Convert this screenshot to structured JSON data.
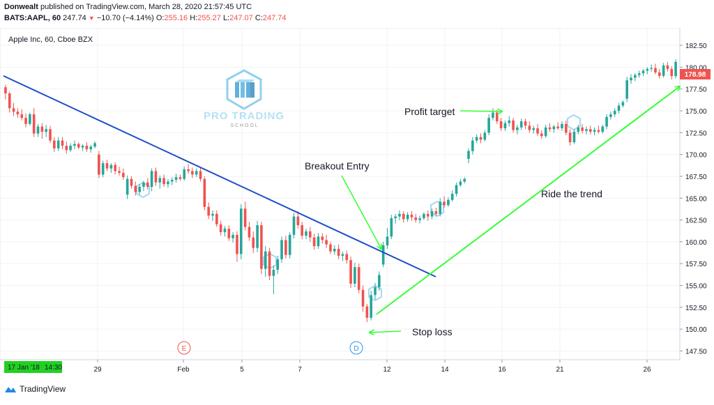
{
  "header": {
    "author": "Donwealt",
    "published": "published on TradingView.com, March 28, 2020 21:57:45 UTC",
    "symbol": "BATS:AAPL, 60",
    "last": "247.74",
    "change": "−10.70 (−4.14%)",
    "o_label": "O:",
    "o": "255.16",
    "h_label": "H:",
    "h": "255.27",
    "l_label": "L:",
    "l": "247.07",
    "c_label": "C:",
    "c": "247.74"
  },
  "chart_title": "Apple Inc, 60, Cboe BZX",
  "price_badge": "178.98",
  "time_badge": "17 Jan '18",
  "time_badge_2": "14:30",
  "footer": {
    "brand": "TradingView"
  },
  "watermark": {
    "line1": "PRO TRADING",
    "line2": "S C H O O L"
  },
  "colors": {
    "up": "#26a69a",
    "down": "#ef5350",
    "trendline": "#1e4fc7",
    "annotation": "#33ff33",
    "badge": "#ef5350",
    "time_badge_bg": "#22d022"
  },
  "chart_data": {
    "type": "candlestick",
    "y_ticks": [
      147.5,
      150.0,
      152.5,
      155.0,
      157.5,
      160.0,
      162.5,
      165.0,
      167.5,
      170.0,
      172.5,
      175.0,
      177.5,
      180.0,
      182.5
    ],
    "ylim": [
      146.5,
      184.5
    ],
    "x_ticks": [
      "29",
      "Feb",
      "5",
      "7",
      "12",
      "14",
      "16",
      "21",
      "26"
    ],
    "markers": [
      {
        "label": "E"
      },
      {
        "label": "D"
      }
    ],
    "annotations": [
      "Profit target",
      "Breakout Entry",
      "Ride the trend",
      "Stop loss"
    ],
    "trendline": {
      "from": 179.0,
      "to": 156.0
    },
    "ride_line": {
      "from": 151.7,
      "to": 177.8
    },
    "candles": [
      {
        "o": 177.7,
        "h": 178.0,
        "l": 176.3,
        "c": 177.0
      },
      {
        "o": 177.0,
        "h": 177.2,
        "l": 174.8,
        "c": 175.3
      },
      {
        "o": 175.3,
        "h": 175.9,
        "l": 174.4,
        "c": 174.9
      },
      {
        "o": 174.9,
        "h": 175.3,
        "l": 174.2,
        "c": 174.6
      },
      {
        "o": 174.6,
        "h": 175.2,
        "l": 173.9,
        "c": 174.2
      },
      {
        "o": 174.2,
        "h": 174.7,
        "l": 173.1,
        "c": 173.5
      },
      {
        "o": 173.5,
        "h": 174.8,
        "l": 173.3,
        "c": 174.6
      },
      {
        "o": 174.6,
        "h": 175.3,
        "l": 172.0,
        "c": 172.4
      },
      {
        "o": 172.4,
        "h": 173.5,
        "l": 172.0,
        "c": 173.2
      },
      {
        "o": 173.2,
        "h": 173.6,
        "l": 171.8,
        "c": 172.6
      },
      {
        "o": 172.6,
        "h": 173.4,
        "l": 172.0,
        "c": 172.9
      },
      {
        "o": 172.9,
        "h": 173.3,
        "l": 171.3,
        "c": 171.6
      },
      {
        "o": 171.6,
        "h": 172.0,
        "l": 170.3,
        "c": 170.7
      },
      {
        "o": 170.7,
        "h": 172.0,
        "l": 170.4,
        "c": 171.6
      },
      {
        "o": 171.6,
        "h": 172.0,
        "l": 170.6,
        "c": 171.0
      },
      {
        "o": 171.0,
        "h": 171.5,
        "l": 170.1,
        "c": 170.5
      },
      {
        "o": 170.5,
        "h": 171.3,
        "l": 170.3,
        "c": 171.0
      },
      {
        "o": 171.0,
        "h": 171.6,
        "l": 170.6,
        "c": 171.2
      },
      {
        "o": 171.2,
        "h": 171.4,
        "l": 170.6,
        "c": 170.8
      },
      {
        "o": 170.8,
        "h": 171.2,
        "l": 170.4,
        "c": 171.0
      },
      {
        "o": 171.0,
        "h": 171.4,
        "l": 170.3,
        "c": 170.6
      },
      {
        "o": 170.6,
        "h": 171.1,
        "l": 170.2,
        "c": 170.9
      },
      {
        "o": 170.9,
        "h": 171.5,
        "l": 170.7,
        "c": 171.3
      },
      {
        "o": 170.0,
        "h": 170.4,
        "l": 167.3,
        "c": 167.7
      },
      {
        "o": 167.7,
        "h": 169.3,
        "l": 167.4,
        "c": 169.0
      },
      {
        "o": 169.0,
        "h": 169.4,
        "l": 168.1,
        "c": 168.4
      },
      {
        "o": 168.4,
        "h": 169.0,
        "l": 167.9,
        "c": 168.8
      },
      {
        "o": 168.8,
        "h": 169.1,
        "l": 167.7,
        "c": 168.1
      },
      {
        "o": 168.1,
        "h": 168.6,
        "l": 167.6,
        "c": 167.9
      },
      {
        "o": 167.9,
        "h": 168.4,
        "l": 167.1,
        "c": 167.4
      },
      {
        "o": 165.4,
        "h": 167.6,
        "l": 164.9,
        "c": 167.2
      },
      {
        "o": 167.2,
        "h": 167.5,
        "l": 166.1,
        "c": 166.4
      },
      {
        "o": 166.4,
        "h": 166.9,
        "l": 165.3,
        "c": 165.7
      },
      {
        "o": 165.7,
        "h": 166.6,
        "l": 165.4,
        "c": 166.3
      },
      {
        "o": 166.3,
        "h": 167.0,
        "l": 165.8,
        "c": 166.8
      },
      {
        "o": 166.8,
        "h": 167.3,
        "l": 166.0,
        "c": 166.3
      },
      {
        "o": 166.3,
        "h": 168.4,
        "l": 165.8,
        "c": 168.1
      },
      {
        "o": 168.1,
        "h": 168.5,
        "l": 166.4,
        "c": 166.8
      },
      {
        "o": 166.8,
        "h": 167.6,
        "l": 166.1,
        "c": 167.3
      },
      {
        "o": 167.3,
        "h": 167.7,
        "l": 166.3,
        "c": 166.6
      },
      {
        "o": 166.6,
        "h": 167.2,
        "l": 166.2,
        "c": 166.9
      },
      {
        "o": 166.9,
        "h": 167.4,
        "l": 166.5,
        "c": 167.1
      },
      {
        "o": 167.1,
        "h": 167.8,
        "l": 166.8,
        "c": 167.4
      },
      {
        "o": 167.4,
        "h": 167.7,
        "l": 167.0,
        "c": 167.2
      },
      {
        "o": 167.2,
        "h": 168.6,
        "l": 167.0,
        "c": 168.3
      },
      {
        "o": 168.3,
        "h": 168.9,
        "l": 167.8,
        "c": 168.1
      },
      {
        "o": 168.1,
        "h": 168.5,
        "l": 167.3,
        "c": 167.7
      },
      {
        "o": 167.7,
        "h": 168.4,
        "l": 167.4,
        "c": 168.1
      },
      {
        "o": 168.1,
        "h": 168.5,
        "l": 166.9,
        "c": 167.2
      },
      {
        "o": 167.2,
        "h": 167.5,
        "l": 163.6,
        "c": 164.0
      },
      {
        "o": 164.0,
        "h": 164.5,
        "l": 162.6,
        "c": 163.0
      },
      {
        "o": 163.0,
        "h": 163.6,
        "l": 162.4,
        "c": 163.2
      },
      {
        "o": 163.2,
        "h": 163.6,
        "l": 161.7,
        "c": 162.0
      },
      {
        "o": 162.0,
        "h": 162.4,
        "l": 160.7,
        "c": 161.1
      },
      {
        "o": 161.1,
        "h": 161.8,
        "l": 160.6,
        "c": 161.5
      },
      {
        "o": 161.5,
        "h": 161.9,
        "l": 160.1,
        "c": 160.4
      },
      {
        "o": 160.4,
        "h": 161.1,
        "l": 159.9,
        "c": 160.8
      },
      {
        "o": 160.8,
        "h": 161.2,
        "l": 157.7,
        "c": 158.6
      },
      {
        "o": 158.6,
        "h": 164.3,
        "l": 158.0,
        "c": 163.8
      },
      {
        "o": 163.8,
        "h": 164.6,
        "l": 161.3,
        "c": 161.7
      },
      {
        "o": 161.7,
        "h": 162.3,
        "l": 160.1,
        "c": 160.5
      },
      {
        "o": 160.5,
        "h": 161.2,
        "l": 158.7,
        "c": 159.3
      },
      {
        "o": 159.3,
        "h": 162.4,
        "l": 158.8,
        "c": 161.9
      },
      {
        "o": 161.9,
        "h": 162.3,
        "l": 156.3,
        "c": 156.9
      },
      {
        "o": 156.9,
        "h": 159.5,
        "l": 156.0,
        "c": 158.9
      },
      {
        "o": 158.9,
        "h": 159.3,
        "l": 155.6,
        "c": 156.1
      },
      {
        "o": 156.1,
        "h": 157.3,
        "l": 154.0,
        "c": 156.8
      },
      {
        "o": 156.8,
        "h": 158.4,
        "l": 156.3,
        "c": 158.0
      },
      {
        "o": 158.0,
        "h": 160.6,
        "l": 157.6,
        "c": 160.2
      },
      {
        "o": 160.2,
        "h": 160.7,
        "l": 158.1,
        "c": 158.5
      },
      {
        "o": 158.5,
        "h": 161.1,
        "l": 158.1,
        "c": 160.8
      },
      {
        "o": 160.8,
        "h": 163.3,
        "l": 160.4,
        "c": 162.9
      },
      {
        "o": 162.9,
        "h": 163.5,
        "l": 161.5,
        "c": 161.9
      },
      {
        "o": 161.9,
        "h": 162.3,
        "l": 160.3,
        "c": 160.7
      },
      {
        "o": 160.7,
        "h": 161.5,
        "l": 160.3,
        "c": 161.2
      },
      {
        "o": 161.2,
        "h": 161.7,
        "l": 160.0,
        "c": 160.5
      },
      {
        "o": 160.5,
        "h": 160.9,
        "l": 159.1,
        "c": 159.5
      },
      {
        "o": 159.5,
        "h": 161.0,
        "l": 159.2,
        "c": 160.6
      },
      {
        "o": 160.6,
        "h": 161.0,
        "l": 159.8,
        "c": 160.2
      },
      {
        "o": 160.2,
        "h": 160.8,
        "l": 159.3,
        "c": 159.7
      },
      {
        "o": 159.7,
        "h": 160.0,
        "l": 158.6,
        "c": 158.9
      },
      {
        "o": 158.9,
        "h": 159.6,
        "l": 158.5,
        "c": 159.2
      },
      {
        "o": 159.2,
        "h": 159.7,
        "l": 158.0,
        "c": 158.4
      },
      {
        "o": 158.4,
        "h": 158.9,
        "l": 157.8,
        "c": 158.6
      },
      {
        "o": 158.6,
        "h": 159.0,
        "l": 157.5,
        "c": 157.9
      },
      {
        "o": 157.9,
        "h": 158.3,
        "l": 154.7,
        "c": 155.2
      },
      {
        "o": 155.2,
        "h": 157.6,
        "l": 154.8,
        "c": 157.1
      },
      {
        "o": 157.1,
        "h": 157.5,
        "l": 154.1,
        "c": 154.5
      },
      {
        "o": 154.5,
        "h": 155.0,
        "l": 152.0,
        "c": 152.6
      },
      {
        "o": 152.6,
        "h": 152.9,
        "l": 150.8,
        "c": 151.3
      },
      {
        "o": 151.3,
        "h": 154.4,
        "l": 151.0,
        "c": 153.9
      },
      {
        "o": 153.9,
        "h": 155.3,
        "l": 153.4,
        "c": 154.8
      },
      {
        "o": 154.8,
        "h": 156.6,
        "l": 154.4,
        "c": 156.2
      },
      {
        "o": 157.4,
        "h": 160.0,
        "l": 157.1,
        "c": 159.6
      },
      {
        "o": 159.6,
        "h": 161.6,
        "l": 159.2,
        "c": 160.6
      },
      {
        "o": 160.6,
        "h": 163.1,
        "l": 160.3,
        "c": 162.7
      },
      {
        "o": 162.7,
        "h": 163.2,
        "l": 162.1,
        "c": 162.9
      },
      {
        "o": 162.9,
        "h": 163.6,
        "l": 162.5,
        "c": 163.2
      },
      {
        "o": 163.2,
        "h": 163.5,
        "l": 162.2,
        "c": 162.6
      },
      {
        "o": 162.6,
        "h": 163.4,
        "l": 162.3,
        "c": 163.1
      },
      {
        "o": 163.1,
        "h": 163.5,
        "l": 162.4,
        "c": 162.8
      },
      {
        "o": 162.8,
        "h": 163.2,
        "l": 162.2,
        "c": 162.5
      },
      {
        "o": 162.5,
        "h": 163.0,
        "l": 162.1,
        "c": 162.7
      },
      {
        "o": 162.7,
        "h": 163.4,
        "l": 162.5,
        "c": 163.2
      },
      {
        "o": 163.2,
        "h": 163.6,
        "l": 162.4,
        "c": 162.9
      },
      {
        "o": 162.9,
        "h": 163.8,
        "l": 162.6,
        "c": 163.5
      },
      {
        "o": 163.5,
        "h": 163.9,
        "l": 162.9,
        "c": 163.2
      },
      {
        "o": 163.2,
        "h": 165.0,
        "l": 162.9,
        "c": 164.6
      },
      {
        "o": 164.6,
        "h": 165.2,
        "l": 163.9,
        "c": 164.2
      },
      {
        "o": 164.2,
        "h": 165.1,
        "l": 164.0,
        "c": 164.8
      },
      {
        "o": 164.8,
        "h": 165.9,
        "l": 164.6,
        "c": 165.5
      },
      {
        "o": 165.5,
        "h": 166.8,
        "l": 165.2,
        "c": 166.5
      },
      {
        "o": 166.5,
        "h": 167.2,
        "l": 166.3,
        "c": 166.9
      },
      {
        "o": 166.9,
        "h": 167.4,
        "l": 166.7,
        "c": 167.2
      },
      {
        "o": 169.5,
        "h": 170.7,
        "l": 169.0,
        "c": 170.4
      },
      {
        "o": 170.4,
        "h": 172.0,
        "l": 170.0,
        "c": 171.6
      },
      {
        "o": 171.6,
        "h": 172.3,
        "l": 171.3,
        "c": 172.0
      },
      {
        "o": 172.0,
        "h": 172.4,
        "l": 171.3,
        "c": 171.7
      },
      {
        "o": 171.7,
        "h": 172.8,
        "l": 171.5,
        "c": 172.5
      },
      {
        "o": 172.5,
        "h": 174.6,
        "l": 172.2,
        "c": 174.2
      },
      {
        "o": 174.2,
        "h": 175.3,
        "l": 173.9,
        "c": 174.8
      },
      {
        "o": 174.8,
        "h": 175.1,
        "l": 173.5,
        "c": 173.8
      },
      {
        "o": 173.8,
        "h": 174.2,
        "l": 172.7,
        "c": 173.0
      },
      {
        "o": 173.0,
        "h": 173.9,
        "l": 172.7,
        "c": 173.6
      },
      {
        "o": 173.6,
        "h": 174.4,
        "l": 173.2,
        "c": 173.9
      },
      {
        "o": 173.9,
        "h": 174.2,
        "l": 172.5,
        "c": 172.8
      },
      {
        "o": 172.8,
        "h": 173.4,
        "l": 172.3,
        "c": 173.1
      },
      {
        "o": 173.1,
        "h": 174.1,
        "l": 172.8,
        "c": 173.8
      },
      {
        "o": 173.8,
        "h": 174.1,
        "l": 172.9,
        "c": 173.3
      },
      {
        "o": 173.3,
        "h": 173.8,
        "l": 172.5,
        "c": 172.8
      },
      {
        "o": 172.8,
        "h": 173.3,
        "l": 172.4,
        "c": 173.0
      },
      {
        "o": 173.0,
        "h": 173.5,
        "l": 172.1,
        "c": 172.4
      },
      {
        "o": 172.4,
        "h": 172.8,
        "l": 171.8,
        "c": 172.1
      },
      {
        "o": 172.1,
        "h": 173.4,
        "l": 171.9,
        "c": 173.1
      },
      {
        "o": 173.1,
        "h": 173.6,
        "l": 172.6,
        "c": 172.9
      },
      {
        "o": 172.9,
        "h": 173.4,
        "l": 172.5,
        "c": 173.2
      },
      {
        "o": 173.2,
        "h": 173.7,
        "l": 172.8,
        "c": 173.0
      },
      {
        "o": 173.0,
        "h": 173.8,
        "l": 172.7,
        "c": 173.5
      },
      {
        "o": 173.5,
        "h": 173.9,
        "l": 172.2,
        "c": 172.5
      },
      {
        "o": 172.5,
        "h": 172.9,
        "l": 171.0,
        "c": 171.4
      },
      {
        "o": 171.4,
        "h": 172.9,
        "l": 171.2,
        "c": 172.6
      },
      {
        "o": 172.6,
        "h": 173.4,
        "l": 172.3,
        "c": 173.1
      },
      {
        "o": 173.1,
        "h": 173.5,
        "l": 172.4,
        "c": 172.7
      },
      {
        "o": 172.7,
        "h": 173.2,
        "l": 172.3,
        "c": 172.9
      },
      {
        "o": 172.9,
        "h": 173.3,
        "l": 172.3,
        "c": 172.6
      },
      {
        "o": 172.6,
        "h": 173.1,
        "l": 172.2,
        "c": 172.8
      },
      {
        "o": 172.8,
        "h": 173.3,
        "l": 172.4,
        "c": 172.6
      },
      {
        "o": 172.6,
        "h": 173.4,
        "l": 172.4,
        "c": 173.2
      },
      {
        "o": 173.2,
        "h": 174.6,
        "l": 172.9,
        "c": 174.3
      },
      {
        "o": 174.3,
        "h": 174.9,
        "l": 174.0,
        "c": 174.6
      },
      {
        "o": 174.6,
        "h": 175.3,
        "l": 174.3,
        "c": 175.0
      },
      {
        "o": 175.0,
        "h": 175.9,
        "l": 174.7,
        "c": 175.6
      },
      {
        "o": 175.6,
        "h": 176.2,
        "l": 175.4,
        "c": 176.0
      },
      {
        "o": 176.4,
        "h": 178.9,
        "l": 176.0,
        "c": 178.5
      },
      {
        "o": 178.5,
        "h": 179.2,
        "l": 178.1,
        "c": 178.8
      },
      {
        "o": 178.8,
        "h": 179.3,
        "l": 178.4,
        "c": 179.1
      },
      {
        "o": 179.1,
        "h": 179.6,
        "l": 178.8,
        "c": 179.3
      },
      {
        "o": 179.3,
        "h": 179.8,
        "l": 179.0,
        "c": 179.6
      },
      {
        "o": 179.6,
        "h": 180.0,
        "l": 179.2,
        "c": 179.8
      },
      {
        "o": 179.8,
        "h": 180.3,
        "l": 179.5,
        "c": 179.9
      },
      {
        "o": 179.9,
        "h": 180.4,
        "l": 179.2,
        "c": 179.4
      },
      {
        "o": 179.4,
        "h": 179.8,
        "l": 178.7,
        "c": 179.0
      },
      {
        "o": 179.0,
        "h": 180.5,
        "l": 178.8,
        "c": 180.2
      },
      {
        "o": 180.2,
        "h": 180.6,
        "l": 179.5,
        "c": 179.8
      },
      {
        "o": 179.8,
        "h": 180.1,
        "l": 178.6,
        "c": 178.98
      },
      {
        "o": 178.98,
        "h": 180.9,
        "l": 178.7,
        "c": 180.6
      }
    ]
  }
}
